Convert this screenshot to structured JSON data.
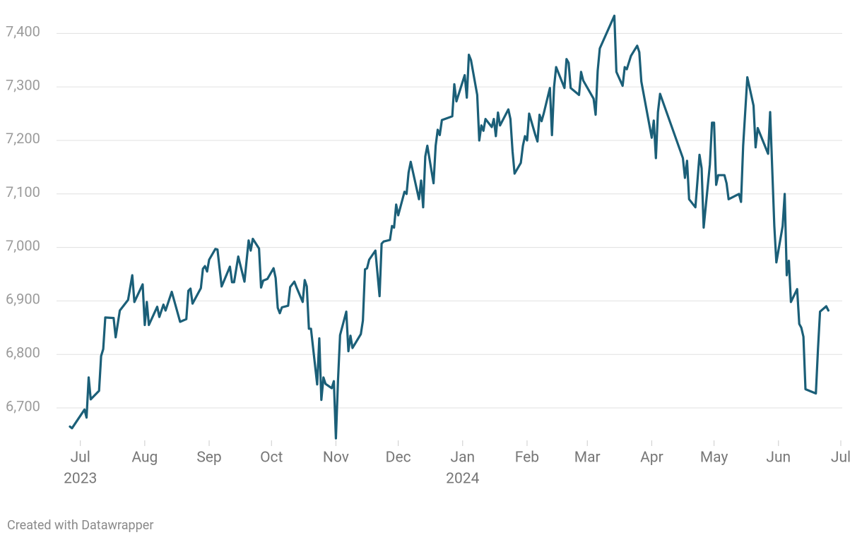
{
  "chart_data": {
    "type": "line",
    "footer": "Created with Datawrapper",
    "x": [
      "2023-06-26",
      "2023-06-27",
      "2023-07-03",
      "2023-07-04",
      "2023-07-05",
      "2023-07-06",
      "2023-07-10",
      "2023-07-11",
      "2023-07-12",
      "2023-07-13",
      "2023-07-17",
      "2023-07-18",
      "2023-07-20",
      "2023-07-24",
      "2023-07-26",
      "2023-07-27",
      "2023-07-31",
      "2023-08-01",
      "2023-08-02",
      "2023-08-03",
      "2023-08-07",
      "2023-08-08",
      "2023-08-10",
      "2023-08-11",
      "2023-08-14",
      "2023-08-18",
      "2023-08-21",
      "2023-08-22",
      "2023-08-23",
      "2023-08-24",
      "2023-08-28",
      "2023-08-29",
      "2023-08-30",
      "2023-08-31",
      "2023-09-01",
      "2023-09-04",
      "2023-09-05",
      "2023-09-07",
      "2023-09-11",
      "2023-09-12",
      "2023-09-13",
      "2023-09-15",
      "2023-09-18",
      "2023-09-20",
      "2023-09-21",
      "2023-09-22",
      "2023-09-25",
      "2023-09-26",
      "2023-09-27",
      "2023-09-29",
      "2023-10-02",
      "2023-10-03",
      "2023-10-04",
      "2023-10-05",
      "2023-10-06",
      "2023-10-09",
      "2023-10-10",
      "2023-10-12",
      "2023-10-13",
      "2023-10-16",
      "2023-10-17",
      "2023-10-18",
      "2023-10-19",
      "2023-10-20",
      "2023-10-23",
      "2023-10-24",
      "2023-10-25",
      "2023-10-26",
      "2023-10-27",
      "2023-10-30",
      "2023-10-31",
      "2023-11-01",
      "2023-11-02",
      "2023-11-03",
      "2023-11-06",
      "2023-11-07",
      "2023-11-08",
      "2023-11-09",
      "2023-11-13",
      "2023-11-14",
      "2023-11-15",
      "2023-11-16",
      "2023-11-17",
      "2023-11-20",
      "2023-11-22",
      "2023-11-23",
      "2023-11-24",
      "2023-11-27",
      "2023-11-28",
      "2023-11-29",
      "2023-11-30",
      "2023-12-01",
      "2023-12-04",
      "2023-12-05",
      "2023-12-06",
      "2023-12-07",
      "2023-12-11",
      "2023-12-12",
      "2023-12-13",
      "2023-12-14",
      "2023-12-15",
      "2023-12-18",
      "2023-12-19",
      "2023-12-20",
      "2023-12-21",
      "2023-12-22",
      "2023-12-27",
      "2023-12-28",
      "2023-12-29",
      "2024-01-02",
      "2024-01-03",
      "2024-01-04",
      "2024-01-05",
      "2024-01-08",
      "2024-01-09",
      "2024-01-10",
      "2024-01-11",
      "2024-01-12",
      "2024-01-15",
      "2024-01-16",
      "2024-01-17",
      "2024-01-18",
      "2024-01-19",
      "2024-01-23",
      "2024-01-24",
      "2024-01-25",
      "2024-01-26",
      "2024-01-29",
      "2024-01-30",
      "2024-01-31",
      "2024-02-01",
      "2024-02-02",
      "2024-02-05",
      "2024-02-06",
      "2024-02-07",
      "2024-02-08",
      "2024-02-09",
      "2024-02-12",
      "2024-02-13",
      "2024-02-14",
      "2024-02-15",
      "2024-02-19",
      "2024-02-20",
      "2024-02-21",
      "2024-02-22",
      "2024-02-26",
      "2024-02-27",
      "2024-02-28",
      "2024-03-04",
      "2024-03-05",
      "2024-03-06",
      "2024-03-07",
      "2024-03-14",
      "2024-03-15",
      "2024-03-18",
      "2024-03-19",
      "2024-03-20",
      "2024-03-22",
      "2024-03-25",
      "2024-03-26",
      "2024-03-27",
      "2024-04-01",
      "2024-04-02",
      "2024-04-03",
      "2024-04-04",
      "2024-04-05",
      "2024-04-16",
      "2024-04-17",
      "2024-04-18",
      "2024-04-19",
      "2024-04-22",
      "2024-04-24",
      "2024-04-25",
      "2024-04-26",
      "2024-04-29",
      "2024-04-30",
      "2024-05-01",
      "2024-05-02",
      "2024-05-03",
      "2024-05-06",
      "2024-05-07",
      "2024-05-08",
      "2024-05-13",
      "2024-05-14",
      "2024-05-15",
      "2024-05-17",
      "2024-05-20",
      "2024-05-21",
      "2024-05-22",
      "2024-05-27",
      "2024-05-28",
      "2024-05-30",
      "2024-05-31",
      "2024-06-03",
      "2024-06-04",
      "2024-06-05",
      "2024-06-06",
      "2024-06-07",
      "2024-06-10",
      "2024-06-11",
      "2024-06-12",
      "2024-06-13",
      "2024-06-14",
      "2024-06-19",
      "2024-06-20",
      "2024-06-21",
      "2024-06-24",
      "2024-06-25"
    ],
    "series": [
      {
        "color": "#1b5f78",
        "values": [
          6665,
          6662,
          6697,
          6682,
          6757,
          6716,
          6732,
          6797,
          6810,
          6869,
          6868,
          6832,
          6882,
          6902,
          6948,
          6898,
          6931,
          6855,
          6898,
          6855,
          6889,
          6870,
          6893,
          6882,
          6917,
          6861,
          6866,
          6919,
          6923,
          6895,
          6924,
          6960,
          6965,
          6955,
          6977,
          6997,
          6996,
          6927,
          6964,
          6935,
          6935,
          6983,
          6936,
          7013,
          6994,
          7016,
          6998,
          6925,
          6938,
          6941,
          6961,
          6943,
          6887,
          6877,
          6888,
          6891,
          6926,
          6936,
          6926,
          6898,
          6939,
          6927,
          6848,
          6848,
          6744,
          6830,
          6715,
          6757,
          6745,
          6737,
          6750,
          6643,
          6752,
          6836,
          6880,
          6806,
          6835,
          6812,
          6838,
          6863,
          6959,
          6961,
          6977,
          6994,
          6909,
          7007,
          7011,
          7014,
          7040,
          7037,
          7080,
          7060,
          7104,
          7100,
          7140,
          7160,
          7090,
          7125,
          7075,
          7170,
          7190,
          7120,
          7190,
          7220,
          7210,
          7238,
          7245,
          7305,
          7273,
          7322,
          7280,
          7360,
          7350,
          7285,
          7200,
          7228,
          7218,
          7240,
          7225,
          7240,
          7208,
          7252,
          7228,
          7258,
          7240,
          7180,
          7138,
          7158,
          7190,
          7208,
          7200,
          7250,
          7210,
          7198,
          7248,
          7236,
          7250,
          7298,
          7210,
          7300,
          7337,
          7298,
          7352,
          7345,
          7298,
          7285,
          7328,
          7312,
          7278,
          7248,
          7330,
          7372,
          7433,
          7328,
          7302,
          7337,
          7333,
          7358,
          7377,
          7365,
          7310,
          7205,
          7237,
          7167,
          7253,
          7287,
          7167,
          7130,
          7162,
          7090,
          7075,
          7173,
          7148,
          7037,
          7155,
          7233,
          7233,
          7117,
          7135,
          7135,
          7120,
          7090,
          7100,
          7085,
          7190,
          7318,
          7265,
          7187,
          7223,
          7175,
          7253,
          7040,
          6972,
          7040,
          7100,
          6948,
          6975,
          6898,
          6922,
          6857,
          6850,
          6833,
          6735,
          6727,
          6810,
          6880,
          6890,
          6882
        ]
      }
    ],
    "xlim": [
      "2023-06-26",
      "2024-07-01"
    ],
    "xticks": [
      {
        "value": "2023-07-01",
        "label": "Jul"
      },
      {
        "value": "2023-08-01",
        "label": "Aug"
      },
      {
        "value": "2023-09-01",
        "label": "Sep"
      },
      {
        "value": "2023-10-01",
        "label": "Oct"
      },
      {
        "value": "2023-11-01",
        "label": "Nov"
      },
      {
        "value": "2023-12-01",
        "label": "Dec"
      },
      {
        "value": "2024-01-01",
        "label": "Jan"
      },
      {
        "value": "2024-02-01",
        "label": "Feb"
      },
      {
        "value": "2024-03-01",
        "label": "Mar"
      },
      {
        "value": "2024-04-01",
        "label": "Apr"
      },
      {
        "value": "2024-05-01",
        "label": "May"
      },
      {
        "value": "2024-06-01",
        "label": "Jun"
      },
      {
        "value": "2024-07-01",
        "label": "Jul"
      }
    ],
    "x_year_labels": [
      {
        "value": "2023-07-01",
        "label": "2023"
      },
      {
        "value": "2024-01-01",
        "label": "2024"
      }
    ],
    "ylim": [
      6640,
      7440
    ],
    "yticks": [
      {
        "value": 6700,
        "label": "6,700"
      },
      {
        "value": 6800,
        "label": "6,800"
      },
      {
        "value": 6900,
        "label": "6,900"
      },
      {
        "value": 7000,
        "label": "7,000"
      },
      {
        "value": 7100,
        "label": "7,100"
      },
      {
        "value": 7200,
        "label": "7,200"
      },
      {
        "value": 7300,
        "label": "7,300"
      },
      {
        "value": 7400,
        "label": "7,400"
      }
    ],
    "grid": true
  }
}
